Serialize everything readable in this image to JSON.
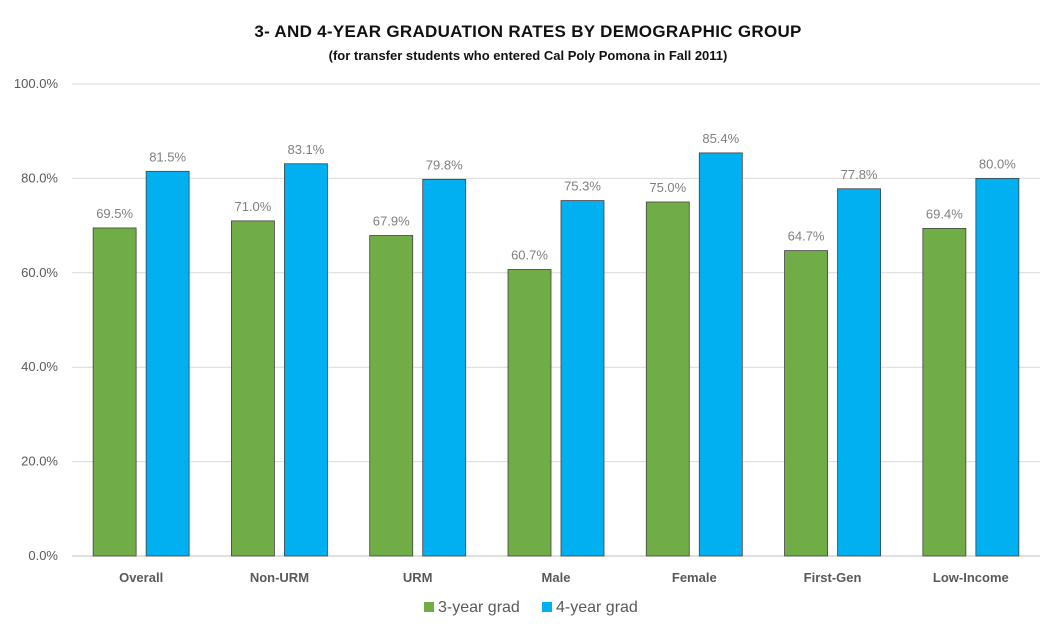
{
  "chart_data": {
    "type": "bar",
    "title": "3- AND 4-YEAR GRADUATION  RATES BY DEMOGRAPHIC  GROUP",
    "subtitle": "(for transfer students who entered Cal Poly Pomona in Fall 2011)",
    "categories": [
      "Overall",
      "Non-URM",
      "URM",
      "Male",
      "Female",
      "First-Gen",
      "Low-Income"
    ],
    "series": [
      {
        "name": "3-year grad",
        "color": "#70ad47",
        "values": [
          69.5,
          71.0,
          67.9,
          60.7,
          75.0,
          64.7,
          69.4
        ]
      },
      {
        "name": "4-year grad",
        "color": "#00b0f0",
        "values": [
          81.5,
          83.1,
          79.8,
          75.3,
          85.4,
          77.8,
          80.0
        ]
      }
    ],
    "ylim": [
      0,
      100
    ],
    "yticks": [
      "0.0%",
      "20.0%",
      "40.0%",
      "60.0%",
      "80.0%",
      "100.0%"
    ],
    "data_labels": true,
    "grid": true,
    "legend_position": "bottom"
  }
}
